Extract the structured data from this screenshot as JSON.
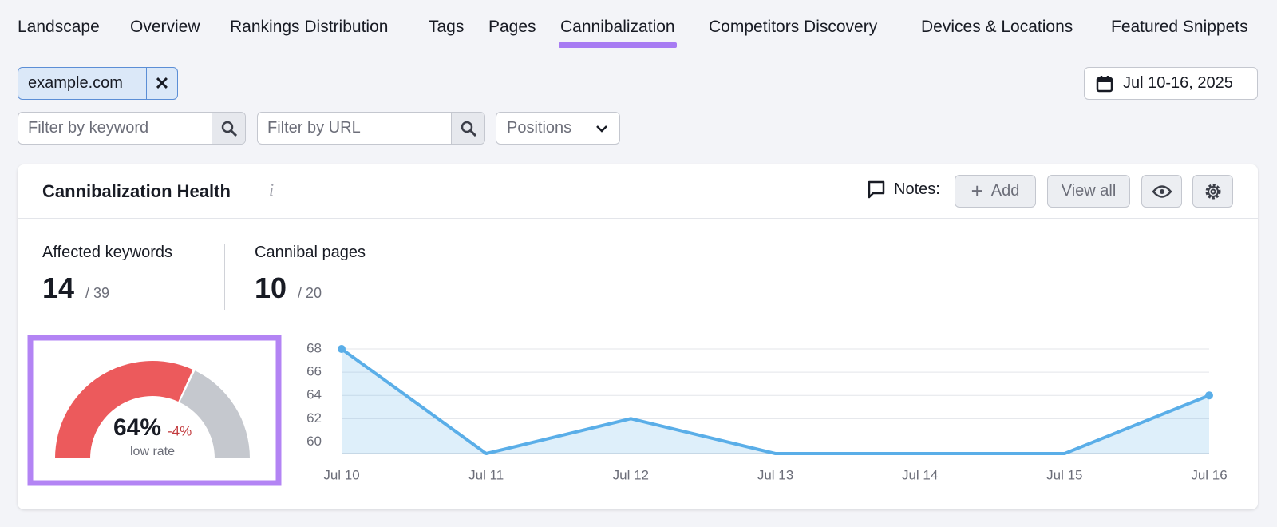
{
  "tabs": [
    "Landscape",
    "Overview",
    "Rankings Distribution",
    "Tags",
    "Pages",
    "Cannibalization",
    "Competitors Discovery",
    "Devices & Locations",
    "Featured Snippets"
  ],
  "active_tab": 5,
  "domain_filter": "example.com",
  "date_range": "Jul 10-16, 2025",
  "filters": {
    "keyword_placeholder": "Filter by keyword",
    "url_placeholder": "Filter by URL",
    "positions": "Positions"
  },
  "card": {
    "title": "Cannibalization Health",
    "notes_label": "Notes:",
    "add_button": "Add",
    "view_all_button": "View all"
  },
  "stats": [
    {
      "label": "Affected keywords",
      "value": 14,
      "total": "/ 39"
    },
    {
      "label": "Cannibal pages",
      "value": 10,
      "total": "/ 20"
    }
  ],
  "gauge": {
    "value": 64,
    "label": "64%",
    "change": "-4%",
    "caption": "low rate",
    "colors": [
      "#ec5a5c",
      "#c5c8ce"
    ]
  },
  "chart_data": {
    "type": "line",
    "categories": [
      "Jul 10",
      "Jul 11",
      "Jul 12",
      "Jul 13",
      "Jul 14",
      "Jul 15",
      "Jul 16"
    ],
    "values": [
      68,
      59,
      62,
      59,
      59,
      59,
      64
    ],
    "color": "#5aaee8",
    "ylim": [
      59,
      68
    ],
    "yticks": [
      60,
      62,
      64,
      66,
      68
    ],
    "grid": true
  }
}
